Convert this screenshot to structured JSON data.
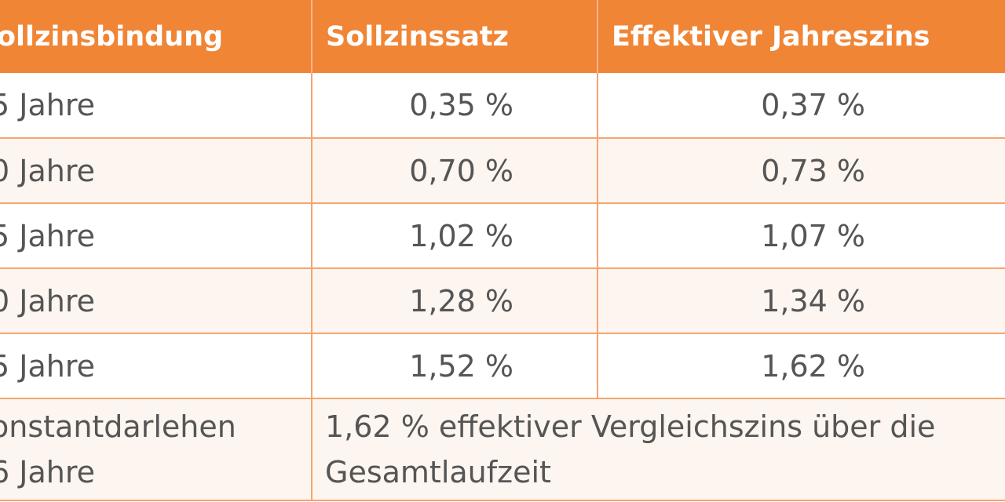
{
  "colors": {
    "header": "#f08536",
    "alt_row": "#fdf5ef",
    "border": "#f4a56e",
    "text": "#555555"
  },
  "table": {
    "headers": [
      "ollzinsbindung",
      "Sollzinssatz",
      "Effektiver Jahreszins"
    ],
    "rows": [
      [
        "5 Jahre",
        "0,35 %",
        "0,37 %"
      ],
      [
        "0 Jahre",
        "0,70 %",
        "0,73 %"
      ],
      [
        "5 Jahre",
        "1,02 %",
        "1,07 %"
      ],
      [
        "0 Jahre",
        "1,28 %",
        "1,34 %"
      ],
      [
        "5 Jahre",
        "1,52 %",
        "1,62 %"
      ]
    ],
    "last_row": {
      "label_line1": "onstantdarlehen",
      "label_line2": "6 Jahre",
      "note_line1": "1,62 % effektiver Vergleichszins über die",
      "note_line2": "Gesamtlaufzeit"
    }
  }
}
